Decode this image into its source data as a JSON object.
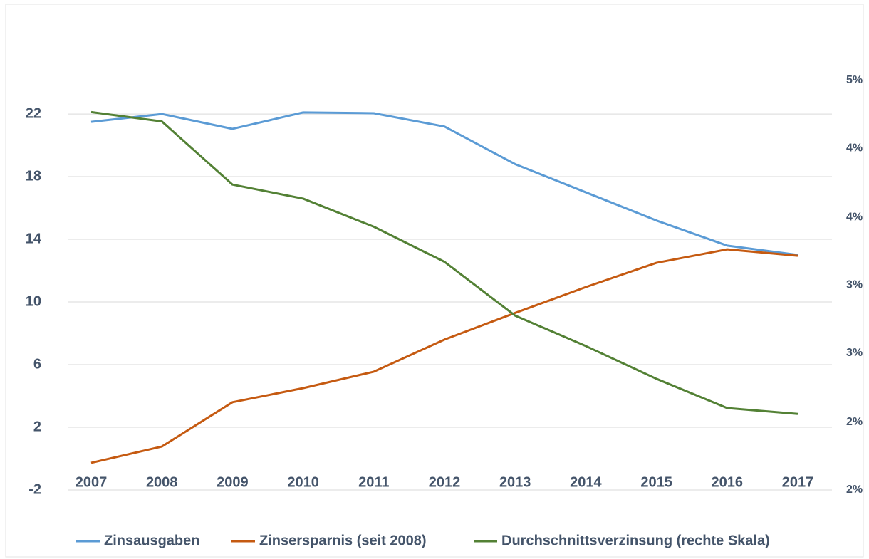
{
  "chart_data": {
    "type": "line",
    "categories": [
      "2007",
      "2008",
      "2009",
      "2010",
      "2011",
      "2012",
      "2013",
      "2014",
      "2015",
      "2016",
      "2017"
    ],
    "series": [
      {
        "name": "Zinsausgaben",
        "color": "#5b9bd5",
        "values": [
          21.5,
          22.0,
          21.05,
          22.1,
          22.05,
          21.2,
          18.8,
          17.0,
          15.2,
          13.6,
          13.0
        ]
      },
      {
        "name": "Zinsersparnis (seit 2008)",
        "color": "#c55a11",
        "values": [
          -0.27,
          0.77,
          3.6,
          4.5,
          5.55,
          7.6,
          9.3,
          10.95,
          12.5,
          13.36,
          12.95
        ]
      },
      {
        "name": "Durchschnittsverzinsung (rechte Skala)",
        "color": "#538135",
        "axis": "y2",
        "values": [
          4.73,
          4.65,
          4.11,
          3.99,
          3.75,
          3.45,
          2.99,
          2.73,
          2.45,
          2.2,
          2.15
        ]
      }
    ],
    "ylim": [
      -2,
      24.14
    ],
    "yticks": [
      -2,
      2,
      6,
      10,
      14,
      18,
      22
    ],
    "y2lim": [
      1.5,
      5
    ],
    "y2ticks": [
      {
        "value": 1.5,
        "label": "2%"
      },
      {
        "value": 2.08,
        "label": "2%"
      },
      {
        "value": 2.67,
        "label": "3%"
      },
      {
        "value": 3.25,
        "label": "3%"
      },
      {
        "value": 3.83,
        "label": "4%"
      },
      {
        "value": 4.42,
        "label": "4%"
      },
      {
        "value": 5,
        "label": "5%"
      }
    ],
    "grid": true,
    "legend": "bottom"
  }
}
